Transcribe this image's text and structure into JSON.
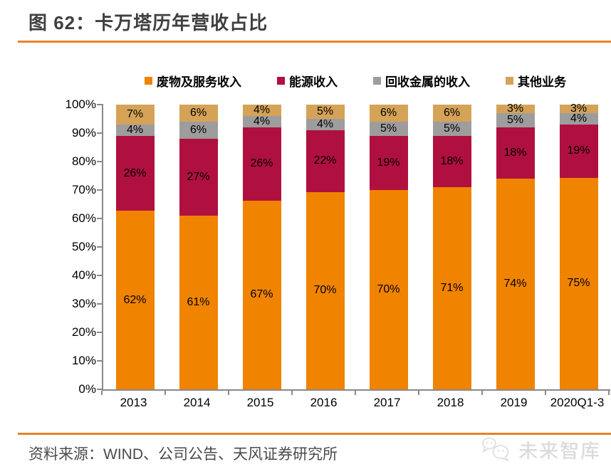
{
  "header": {
    "title": "图 62：卡万塔历年营收占比"
  },
  "colors": {
    "accent_rule": "#e8822a",
    "axis": "#898989",
    "title_text": "#3f3f3f",
    "waste_orange": "#f08300",
    "energy_crimson": "#b01040",
    "metal_gray": "#9d9d9d",
    "other_tan": "#d5a358"
  },
  "chart_data": {
    "type": "bar",
    "stacked": true,
    "stack_mode": "percent",
    "title": "卡万塔历年营收占比",
    "categories": [
      "2013",
      "2014",
      "2015",
      "2016",
      "2017",
      "2018",
      "2019",
      "2020Q1-3"
    ],
    "series": [
      {
        "name": "废物及服务收入",
        "color": "#f08300",
        "values": [
          62,
          61,
          67,
          70,
          70,
          71,
          74,
          75
        ]
      },
      {
        "name": "能源收入",
        "color": "#b01040",
        "values": [
          26,
          27,
          26,
          22,
          19,
          18,
          18,
          19
        ]
      },
      {
        "name": "回收金属的收入",
        "color": "#9d9d9d",
        "values": [
          4,
          6,
          4,
          4,
          5,
          5,
          5,
          4
        ]
      },
      {
        "name": "其他业务",
        "color": "#d5a358",
        "values": [
          7,
          6,
          4,
          5,
          6,
          6,
          3,
          3
        ]
      }
    ],
    "value_suffix": "%",
    "xlabel": "",
    "ylabel": "",
    "ylim": [
      0,
      100
    ],
    "y_ticks": [
      "0%",
      "10%",
      "20%",
      "30%",
      "40%",
      "50%",
      "60%",
      "70%",
      "80%",
      "90%",
      "100%"
    ],
    "grid": false,
    "legend_position": "top"
  },
  "footer": {
    "source": "资料来源：WIND、公司公告、天风证券研究所",
    "logo_text": "未来智库"
  }
}
